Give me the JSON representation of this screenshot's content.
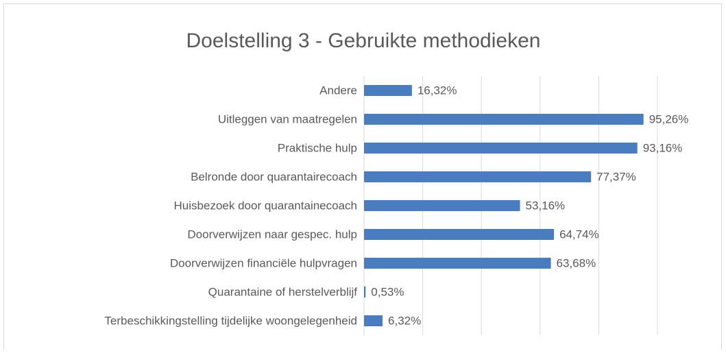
{
  "chart_data": {
    "type": "bar",
    "orientation": "horizontal",
    "title": "Doelstelling 3 - Gebruikte methodieken",
    "categories": [
      "Andere",
      "Uitleggen van maatregelen",
      "Praktische hulp",
      "Belronde door quarantairecoach",
      "Huisbezoek door quarantainecoach",
      "Doorverwijzen naar gespec. hulp",
      "Doorverwijzen financiële hulpvragen",
      "Quarantaine of herstelverblijf",
      "Terbeschikkingstelling tijdelijke woongelegenheid"
    ],
    "values": [
      16.32,
      95.26,
      93.16,
      77.37,
      53.16,
      64.74,
      63.68,
      0.53,
      6.32
    ],
    "value_labels": [
      "16,32%",
      "95,26%",
      "93,16%",
      "77,37%",
      "53,16%",
      "64,74%",
      "63,68%",
      "0,53%",
      "6,32%"
    ],
    "color": "#4a7dc0",
    "xlim": [
      0,
      100
    ],
    "xticks": [
      0,
      20,
      40,
      60,
      80,
      100
    ],
    "grid": true
  }
}
